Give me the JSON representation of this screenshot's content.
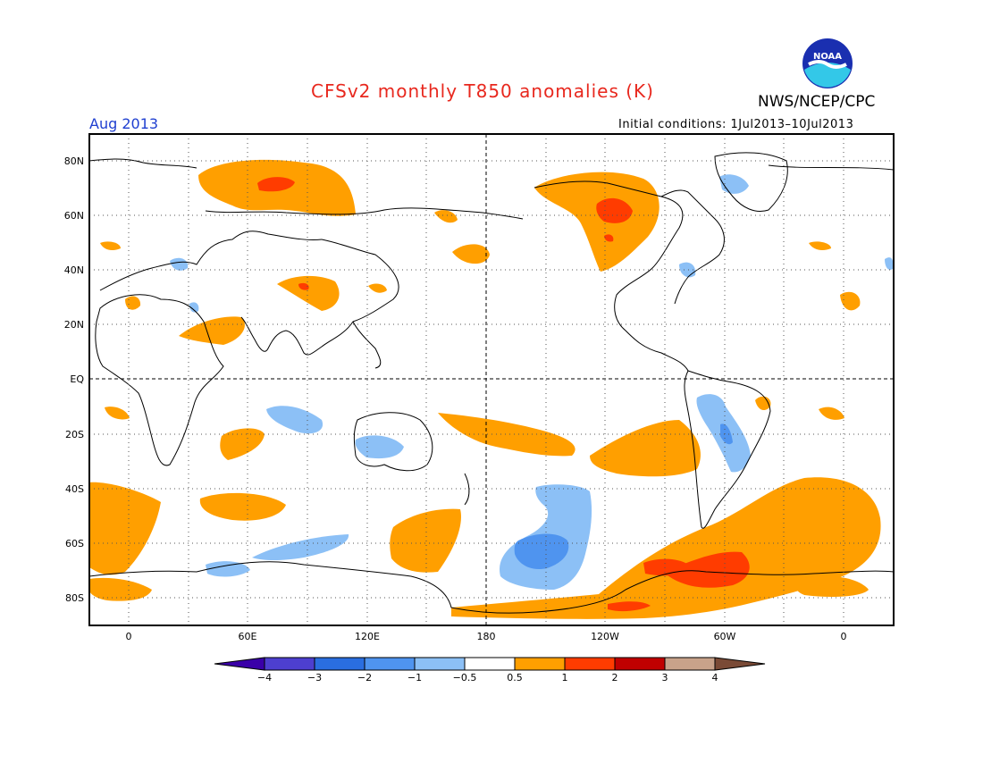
{
  "title": "CFSv2 monthly T850 anomalies (K)",
  "agency": "NWS/NCEP/CPC",
  "logo_text": "NOAA",
  "valid_month": "Aug 2013",
  "initial_conditions": "Initial conditions: 1Jul2013–10Jul2013",
  "lat_labels": [
    "80N",
    "60N",
    "40N",
    "20N",
    "EQ",
    "20S",
    "40S",
    "60S",
    "80S"
  ],
  "lon_labels": [
    "0",
    "60E",
    "120E",
    "180",
    "120W",
    "60W",
    "0"
  ],
  "colorbar": {
    "labels": [
      "−4",
      "−3",
      "−2",
      "−1",
      "−0.5",
      "0.5",
      "1",
      "2",
      "3",
      "4"
    ],
    "colors": [
      "#3a00a8",
      "#4d3fcf",
      "#2a6ee0",
      "#4f94ef",
      "#8cc0f6",
      "#ffffff",
      "#ff9f00",
      "#ff3c00",
      "#c00000",
      "#c8a28a",
      "#7a4a36"
    ]
  },
  "colors": {
    "orange": "#ff9f00",
    "red": "#ff3c00",
    "blue_light": "#8cc0f6",
    "blue_mid": "#4f94ef"
  }
}
